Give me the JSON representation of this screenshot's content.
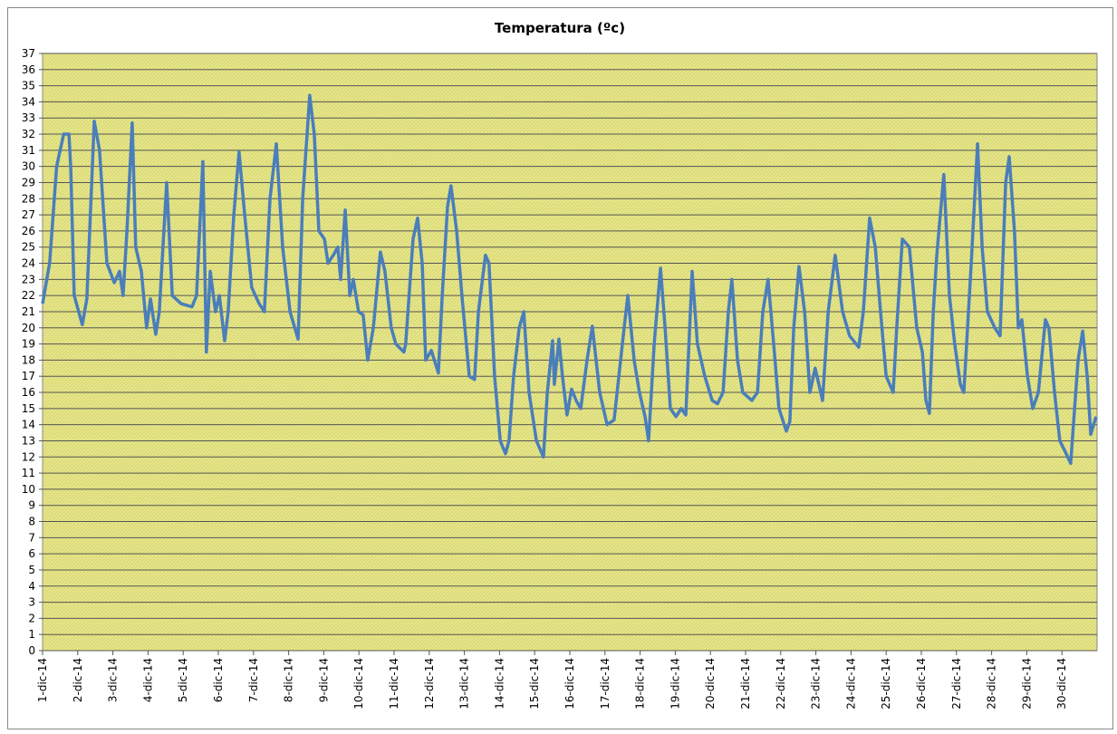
{
  "chart_data": {
    "type": "line",
    "title": "Temperatura (ºc)",
    "xlim": [
      0,
      30
    ],
    "xticks": [
      {
        "value": 0,
        "label": "1-dic-14"
      },
      {
        "value": 1,
        "label": "2-dic-14"
      },
      {
        "value": 2,
        "label": "3-dic-14"
      },
      {
        "value": 3,
        "label": "4-dic-14"
      },
      {
        "value": 4,
        "label": "5-dic-14"
      },
      {
        "value": 5,
        "label": "6-dic-14"
      },
      {
        "value": 6,
        "label": "7-dic-14"
      },
      {
        "value": 7,
        "label": "8-dic-14"
      },
      {
        "value": 8,
        "label": "9-dic-14"
      },
      {
        "value": 9,
        "label": "10-dic-14"
      },
      {
        "value": 10,
        "label": "11-dic-14"
      },
      {
        "value": 11,
        "label": "12-dic-14"
      },
      {
        "value": 12,
        "label": "13-dic-14"
      },
      {
        "value": 13,
        "label": "14-dic-14"
      },
      {
        "value": 14,
        "label": "15-dic-14"
      },
      {
        "value": 15,
        "label": "16-dic-14"
      },
      {
        "value": 16,
        "label": "17-dic-14"
      },
      {
        "value": 17,
        "label": "18-dic-14"
      },
      {
        "value": 18,
        "label": "19-dic-14"
      },
      {
        "value": 19,
        "label": "20-dic-14"
      },
      {
        "value": 20,
        "label": "21-dic-14"
      },
      {
        "value": 21,
        "label": "22-dic-14"
      },
      {
        "value": 22,
        "label": "23-dic-14"
      },
      {
        "value": 23,
        "label": "24-dic-14"
      },
      {
        "value": 24,
        "label": "25-dic-14"
      },
      {
        "value": 25,
        "label": "26-dic-14"
      },
      {
        "value": 26,
        "label": "27-dic-14"
      },
      {
        "value": 27,
        "label": "28-dic-14"
      },
      {
        "value": 28,
        "label": "29-dic-14"
      },
      {
        "value": 29,
        "label": "30-dic-14"
      }
    ],
    "ylim": [
      0,
      37
    ],
    "yticks": [
      0,
      1,
      2,
      3,
      4,
      5,
      6,
      7,
      8,
      9,
      10,
      11,
      12,
      13,
      14,
      15,
      16,
      17,
      18,
      19,
      20,
      21,
      22,
      23,
      24,
      25,
      26,
      27,
      28,
      29,
      30,
      31,
      32,
      33,
      34,
      35,
      36,
      37
    ],
    "grid": true,
    "background": "#e6e68a",
    "x": [
      0,
      0.2,
      0.4,
      0.6,
      0.75,
      0.8,
      0.9,
      1.13,
      1.26,
      1.47,
      1.62,
      1.83,
      2.04,
      2.19,
      2.29,
      2.4,
      2.55,
      2.65,
      2.81,
      2.96,
      3.07,
      3.22,
      3.32,
      3.53,
      3.69,
      3.94,
      4.25,
      4.38,
      4.56,
      4.66,
      4.77,
      4.92,
      5.03,
      5.18,
      5.28,
      5.44,
      5.59,
      5.75,
      5.95,
      6.16,
      6.31,
      6.47,
      6.65,
      6.83,
      7.04,
      7.27,
      7.4,
      7.6,
      7.73,
      7.86,
      8.02,
      8.12,
      8.27,
      8.4,
      8.48,
      8.61,
      8.74,
      8.84,
      8.99,
      9.12,
      9.25,
      9.41,
      9.61,
      9.74,
      9.92,
      10.05,
      10.28,
      10.33,
      10.54,
      10.67,
      10.8,
      10.9,
      11.06,
      11.26,
      11.37,
      11.52,
      11.62,
      11.78,
      11.93,
      12.14,
      12.29,
      12.4,
      12.6,
      12.7,
      12.86,
      13.02,
      13.17,
      13.27,
      13.4,
      13.56,
      13.69,
      13.84,
      14.05,
      14.25,
      14.36,
      14.51,
      14.56,
      14.69,
      14.79,
      14.92,
      15.05,
      15.18,
      15.31,
      15.49,
      15.64,
      15.85,
      16.06,
      16.26,
      16.42,
      16.52,
      16.65,
      16.83,
      16.98,
      17.14,
      17.24,
      17.4,
      17.58,
      17.71,
      17.86,
      18.02,
      18.17,
      18.3,
      18.48,
      18.63,
      18.84,
      19.05,
      19.2,
      19.36,
      19.51,
      19.61,
      19.77,
      19.92,
      20.18,
      20.34,
      20.49,
      20.64,
      20.8,
      20.95,
      21.16,
      21.26,
      21.37,
      21.52,
      21.68,
      21.83,
      21.98,
      22.19,
      22.35,
      22.55,
      22.76,
      22.96,
      23.22,
      23.35,
      23.53,
      23.69,
      23.84,
      24,
      24.2,
      24.3,
      24.46,
      24.66,
      24.87,
      25.03,
      25.13,
      25.23,
      25.34,
      25.44,
      25.64,
      25.8,
      25.95,
      26.11,
      26.21,
      26.42,
      26.6,
      26.73,
      26.88,
      27.09,
      27.24,
      27.4,
      27.5,
      27.65,
      27.76,
      27.86,
      28.02,
      28.17,
      28.33,
      28.53,
      28.63,
      28.79,
      28.94,
      29.1,
      29.25,
      29.36,
      29.46,
      29.59,
      29.72,
      29.82,
      29.97
    ],
    "series": [
      {
        "color": "#4a7ebb",
        "values": [
          21.5,
          24,
          30,
          32,
          32,
          30,
          22,
          20.2,
          21.8,
          32.8,
          31,
          24,
          22.8,
          23.5,
          22,
          26,
          32.7,
          25,
          23.5,
          20,
          21.8,
          19.6,
          21,
          29,
          22,
          21.5,
          21.3,
          22,
          30.3,
          18.5,
          23.5,
          21,
          22,
          19.2,
          21,
          27,
          30.9,
          27,
          22.5,
          21.5,
          21,
          28,
          31.4,
          25,
          21,
          19.3,
          28,
          34.4,
          32,
          26,
          25.5,
          24,
          24.5,
          25,
          23,
          27.3,
          22,
          23,
          21,
          20.8,
          18,
          20,
          24.7,
          23.5,
          20,
          19,
          18.5,
          19,
          25.5,
          26.8,
          24,
          18,
          18.6,
          17.2,
          22,
          27.5,
          28.8,
          26,
          22,
          17,
          16.8,
          21,
          24.5,
          24,
          17,
          13,
          12.2,
          13,
          17,
          20,
          21,
          16,
          13,
          12,
          16,
          19.2,
          16.5,
          19.3,
          17,
          14.6,
          16.2,
          15.5,
          15,
          18,
          20.1,
          16,
          14,
          14.3,
          17.5,
          19.5,
          22,
          18,
          16,
          14.5,
          13,
          19,
          23.7,
          20,
          15,
          14.5,
          15,
          14.6,
          23.5,
          19,
          17,
          15.5,
          15.3,
          16,
          21,
          23,
          18,
          16,
          15.5,
          16,
          21,
          23,
          19,
          15,
          13.6,
          14.2,
          20,
          23.8,
          21,
          16,
          17.5,
          15.5,
          21,
          24.5,
          21,
          19.5,
          18.8,
          21,
          26.8,
          25,
          21,
          17,
          16,
          20,
          25.5,
          25,
          20,
          18.5,
          15.5,
          14.7,
          21,
          24.5,
          29.5,
          22,
          19,
          16.5,
          16,
          24,
          31.4,
          25,
          21,
          20,
          19.5,
          29,
          30.6,
          26,
          20,
          20.5,
          17,
          15,
          16,
          20.5,
          20,
          16,
          13,
          12.3,
          11.6,
          15,
          18,
          19.8,
          17,
          13.4,
          14.5
        ]
      }
    ]
  }
}
